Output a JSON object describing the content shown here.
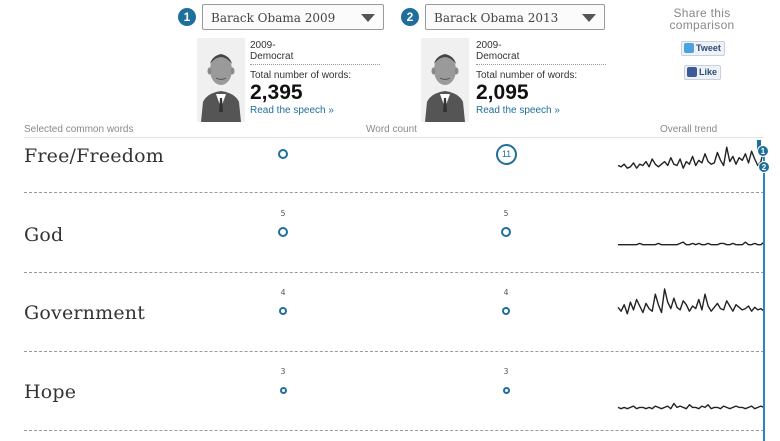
{
  "selectors": [
    {
      "badge": "1",
      "value": "Barack Obama 2009"
    },
    {
      "badge": "2",
      "value": "Barack Obama 2013"
    }
  ],
  "speeches": [
    {
      "year_line": "2009-",
      "party": "Democrat",
      "total_label": "Total number of words:",
      "total": "2,395",
      "link": "Read the speech »"
    },
    {
      "year_line": "2009-",
      "party": "Democrat",
      "total_label": "Total number of words:",
      "total": "2,095",
      "link": "Read the speech »"
    }
  ],
  "share": {
    "text_line1": "Share this",
    "text_line2": "comparison",
    "tweet_label": "Tweet",
    "like_label": "Like"
  },
  "columns": {
    "words": "Selected common words",
    "count": "Word count",
    "trend": "Overall trend"
  },
  "rows": [
    {
      "word": "Free/Freedom",
      "count1": "",
      "count2": "11",
      "trend": [
        8,
        7,
        9,
        6,
        7,
        10,
        6,
        9,
        8,
        11,
        7,
        13,
        9,
        7,
        9,
        11,
        8,
        14,
        9,
        8,
        13,
        6,
        11,
        9,
        15,
        8,
        12,
        10,
        17,
        11,
        9,
        10,
        18,
        12,
        8,
        22,
        11,
        15,
        9,
        14,
        12,
        17,
        10,
        19,
        13,
        8,
        11,
        21
      ]
    },
    {
      "word": "God",
      "count1": "5",
      "count2": "5",
      "trend": [
        1,
        1,
        1,
        1,
        1,
        1,
        1,
        2,
        1,
        1,
        1,
        1,
        1,
        2,
        1,
        1,
        1,
        1,
        1,
        1,
        2,
        3,
        1,
        1,
        2,
        1,
        2,
        1,
        1,
        2,
        1,
        1,
        1,
        2,
        2,
        1,
        1,
        2,
        1,
        1,
        1,
        3,
        1,
        1,
        2,
        1,
        1,
        3
      ]
    },
    {
      "word": "Government",
      "count1": "4",
      "count2": "4",
      "trend": [
        12,
        9,
        14,
        7,
        16,
        10,
        18,
        13,
        8,
        15,
        11,
        9,
        22,
        14,
        8,
        26,
        16,
        11,
        19,
        12,
        10,
        17,
        14,
        9,
        13,
        11,
        18,
        10,
        22,
        13,
        9,
        12,
        15,
        11,
        10,
        17,
        13,
        9,
        14,
        12,
        10,
        11,
        13,
        9,
        12,
        10,
        11,
        9
      ]
    },
    {
      "word": "Hope",
      "count1": "3",
      "count2": "3",
      "trend": [
        2,
        1,
        2,
        1,
        2,
        3,
        1,
        2,
        2,
        1,
        2,
        1,
        3,
        2,
        1,
        2,
        3,
        1,
        5,
        2,
        3,
        2,
        1,
        4,
        2,
        2,
        1,
        3,
        2,
        4,
        1,
        2,
        2,
        1,
        3,
        2,
        1,
        2,
        3,
        2,
        2,
        1,
        2,
        3,
        1,
        2,
        3,
        2
      ]
    }
  ],
  "timeline": {
    "badge1": "1",
    "badge2": "2"
  },
  "colors": {
    "accent": "#1f6f9c",
    "timeline": "#2a86bb",
    "trend_line": "#222222"
  }
}
